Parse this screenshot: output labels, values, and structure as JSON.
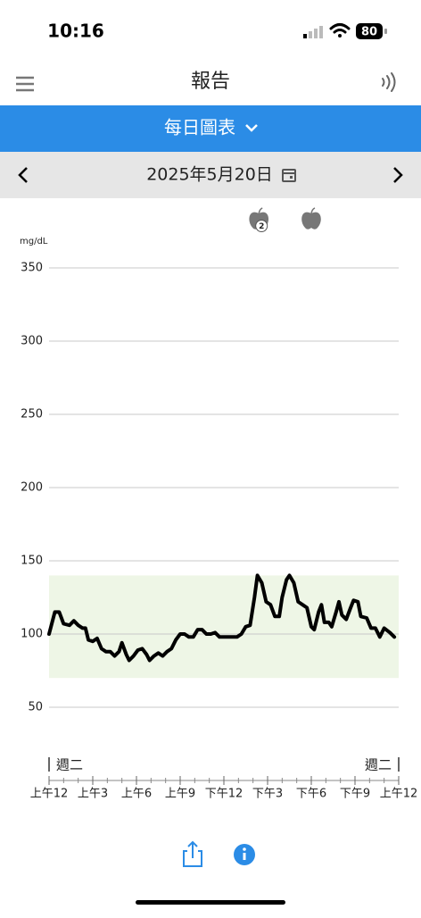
{
  "status_bar": {
    "time": "10:16",
    "battery": "80"
  },
  "header": {
    "title": "報告"
  },
  "view_selector": {
    "label": "每日圖表"
  },
  "date_bar": {
    "date": "2025年5月20日"
  },
  "chart_data": {
    "type": "line",
    "y_unit": "mg/dL",
    "x": [
      0,
      0.4,
      0.7,
      1.0,
      1.4,
      1.7,
      2.0,
      2.3,
      2.5,
      2.7,
      3.0,
      3.3,
      3.6,
      3.9,
      4.2,
      4.5,
      4.8,
      5.0,
      5.3,
      5.5,
      5.8,
      6.1,
      6.4,
      6.7,
      6.9,
      7.2,
      7.5,
      7.8,
      8.1,
      8.4,
      8.7,
      9.0,
      9.3,
      9.6,
      9.9,
      10.2,
      10.5,
      10.8,
      11.1,
      11.4,
      11.7,
      12.0,
      12.3,
      12.6,
      12.9,
      13.2,
      13.5,
      13.8,
      14.1,
      14.3,
      14.6,
      14.9,
      15.2,
      15.5,
      15.8,
      16.0,
      16.3,
      16.5,
      16.8,
      17.1,
      17.4,
      17.7,
      18.0,
      18.2,
      18.5,
      18.7,
      18.9,
      19.2,
      19.4,
      19.7,
      19.9,
      20.1,
      20.4,
      20.7,
      20.9,
      21.2,
      21.4,
      21.8,
      22.1,
      22.4,
      22.7,
      23.0,
      23.4,
      23.7
    ],
    "values": [
      100,
      115,
      115,
      107,
      106,
      109,
      106,
      104,
      104,
      96,
      95,
      97,
      90,
      88,
      88,
      85,
      88,
      94,
      86,
      82,
      85,
      89,
      90,
      86,
      82,
      85,
      87,
      85,
      88,
      90,
      96,
      100,
      100,
      98,
      98,
      103,
      103,
      100,
      100,
      101,
      98,
      98,
      98,
      98,
      98,
      100,
      105,
      106,
      125,
      140,
      135,
      122,
      120,
      112,
      112,
      125,
      137,
      140,
      135,
      122,
      120,
      118,
      105,
      103,
      115,
      120,
      108,
      108,
      105,
      115,
      122,
      113,
      110,
      118,
      123,
      122,
      112,
      111,
      104,
      104,
      98,
      104,
      101,
      98
    ],
    "color": "#000000",
    "xlim": [
      0,
      24
    ],
    "xticks": [
      {
        "value": 0,
        "label": "上午12"
      },
      {
        "value": 3,
        "label": "上午3"
      },
      {
        "value": 6,
        "label": "上午6"
      },
      {
        "value": 9,
        "label": "上午9"
      },
      {
        "value": 12,
        "label": "下午12"
      },
      {
        "value": 15,
        "label": "下午3"
      },
      {
        "value": 18,
        "label": "下午6"
      },
      {
        "value": 21,
        "label": "下午9"
      },
      {
        "value": 24,
        "label": "上午12"
      }
    ],
    "xminorticks": [
      0,
      1,
      2,
      3,
      4,
      5,
      6,
      7,
      8,
      9,
      10,
      11,
      12,
      13,
      14,
      15,
      16,
      17,
      18,
      19,
      20,
      21,
      22,
      23,
      24
    ],
    "ylim": [
      0,
      350
    ],
    "yticks": [
      50,
      100,
      150,
      200,
      250,
      300,
      350
    ],
    "grid": true,
    "target_range": [
      70,
      140
    ],
    "target_color": "#eef6e6",
    "day_labels": [
      "週二",
      "週二"
    ],
    "events": [
      {
        "x": 14.4,
        "badge": "2"
      },
      {
        "x": 18.0
      }
    ]
  }
}
